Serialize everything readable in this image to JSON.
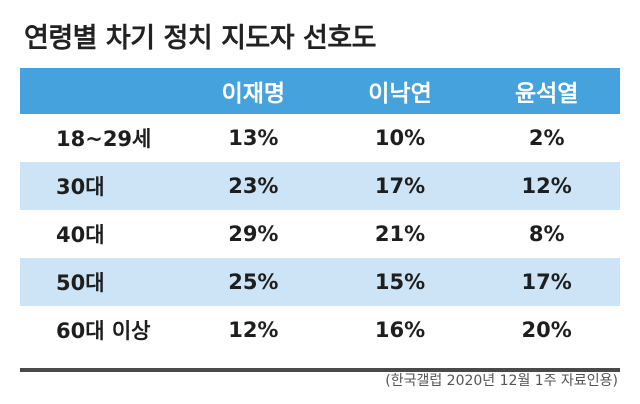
{
  "title": "연령별 차기 정치 지도자 선호도",
  "source": "(한국갤럽 2020년 12월 1주 자료인용)",
  "chart_data": {
    "type": "table",
    "title": "연령별 차기 정치 지도자 선호도",
    "columns": [
      "이재명",
      "이낙연",
      "윤석열"
    ],
    "rows": [
      {
        "label": "18~29세",
        "values": [
          "13%",
          "10%",
          "2%"
        ]
      },
      {
        "label": "30대",
        "values": [
          "23%",
          "17%",
          "12%"
        ]
      },
      {
        "label": "40대",
        "values": [
          "29%",
          "21%",
          "8%"
        ]
      },
      {
        "label": "50대",
        "values": [
          "25%",
          "15%",
          "17%"
        ]
      },
      {
        "label": "60대 이상",
        "values": [
          "12%",
          "16%",
          "20%"
        ]
      }
    ]
  },
  "colors": {
    "header_bg": "#46a2dd",
    "shaded_row": "#cde4f6",
    "rule": "#4a4a4a"
  }
}
